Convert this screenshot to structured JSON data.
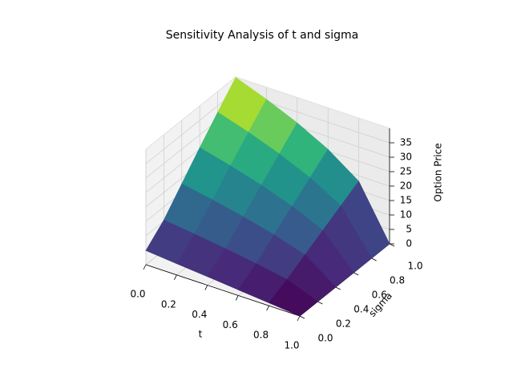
{
  "chart_data": {
    "type": "surface",
    "title": "Sensitivity Analysis of t and sigma",
    "xlabel": "t",
    "ylabel": "sigma",
    "zlabel": "Option Price",
    "colormap": "viridis",
    "x": [
      0,
      0.2,
      0.4,
      0.6,
      0.8,
      1
    ],
    "y": [
      0,
      0.2,
      0.4,
      0.6,
      0.8,
      1
    ],
    "z": [
      [
        4.88,
        3.92,
        2.96,
        1.98,
        1.0,
        0
      ],
      [
        10.45,
        9.13,
        7.68,
        6.04,
        4.1,
        0
      ],
      [
        18.02,
        15.98,
        13.67,
        10.98,
        7.61,
        0
      ],
      [
        25.52,
        22.77,
        19.63,
        15.89,
        11.11,
        0
      ],
      [
        32.81,
        29.42,
        25.46,
        20.78,
        14.64,
        0
      ],
      [
        39.83,
        35.83,
        31.22,
        25.6,
        18.11,
        0
      ]
    ],
    "xlim": [
      0,
      1
    ],
    "ylim": [
      0,
      1
    ],
    "zlim": [
      0,
      40
    ],
    "xticks": [
      {
        "value": 0,
        "label": "0.0"
      },
      0.2,
      0.4,
      0.6,
      0.8,
      {
        "value": 1,
        "label": "1.0"
      }
    ],
    "yticks": [
      {
        "value": 0,
        "label": "0.0"
      },
      0.2,
      0.4,
      0.6,
      0.8,
      {
        "value": 1,
        "label": "1.0"
      }
    ],
    "zticks": [
      0,
      5,
      10,
      15,
      20,
      25,
      30,
      35
    ],
    "grid": true
  }
}
